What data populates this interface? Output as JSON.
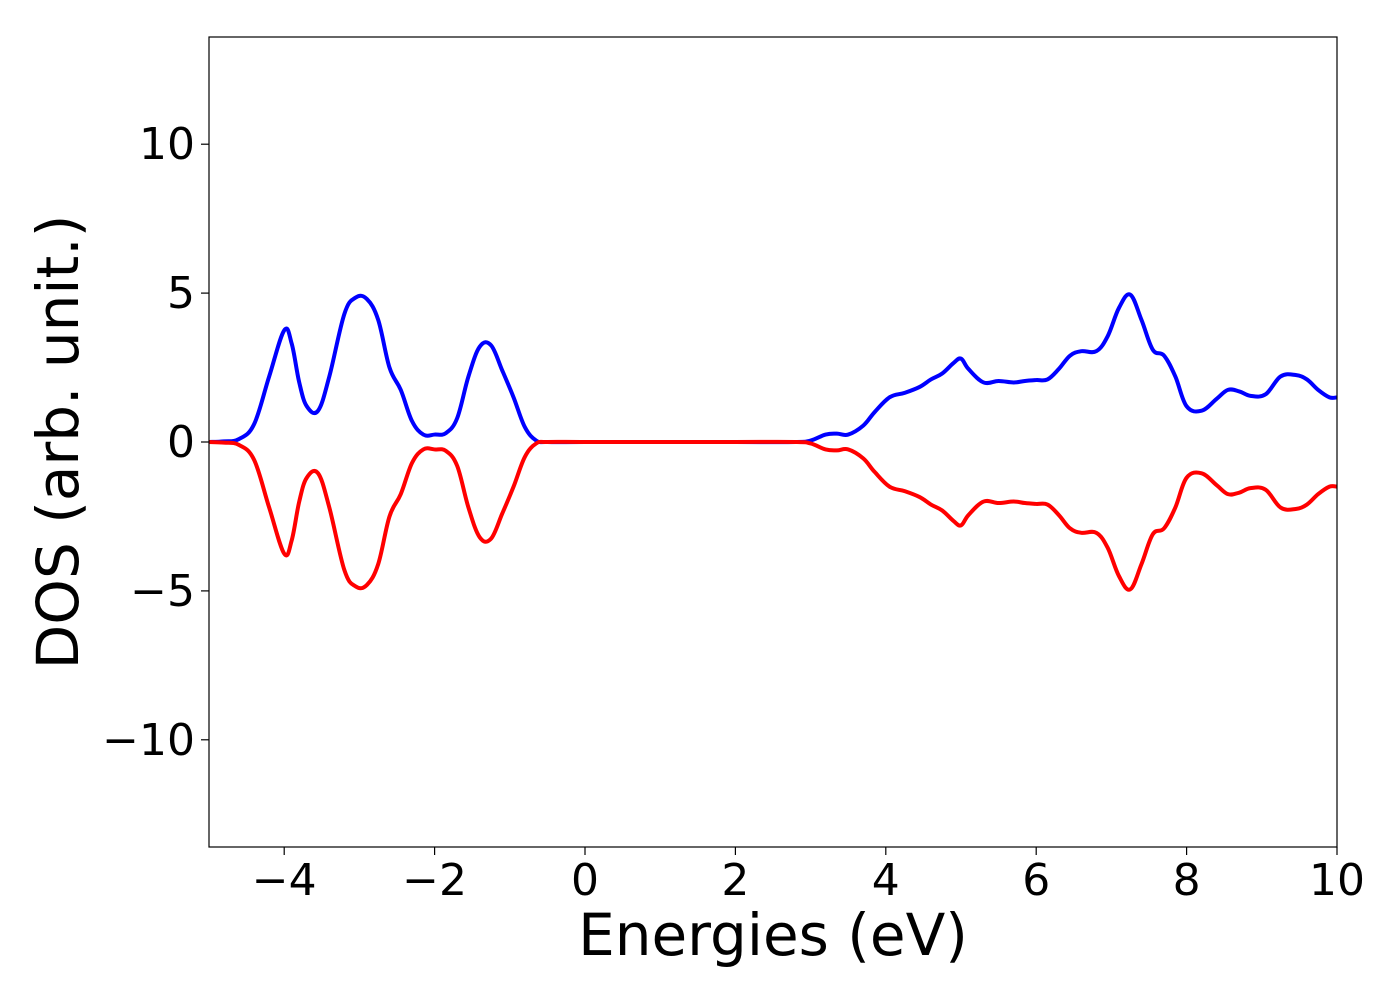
{
  "chart_data": {
    "type": "line",
    "title": "",
    "xlabel": "Energies (eV)",
    "ylabel": "DOS (arb. unit.)",
    "xlim": [
      -5,
      10
    ],
    "ylim": [
      -13.6,
      13.6
    ],
    "xticks": [
      -4,
      -2,
      0,
      2,
      4,
      6,
      8,
      10
    ],
    "xtick_labels": [
      "−4",
      "−2",
      "0",
      "2",
      "4",
      "6",
      "8",
      "10"
    ],
    "yticks": [
      -10,
      -5,
      0,
      5,
      10
    ],
    "ytick_labels": [
      "−10",
      "−5",
      "0",
      "5",
      "10"
    ],
    "grid": false,
    "legend": false,
    "series": [
      {
        "color": "#0000ff",
        "x": [
          -5.0,
          -4.8,
          -4.6,
          -4.4,
          -4.2,
          -4.0,
          -3.9,
          -3.8,
          -3.7,
          -3.55,
          -3.4,
          -3.2,
          -3.05,
          -2.9,
          -2.75,
          -2.6,
          -2.45,
          -2.3,
          -2.15,
          -2.0,
          -1.85,
          -1.7,
          -1.55,
          -1.4,
          -1.25,
          -1.1,
          -0.95,
          -0.8,
          -0.65,
          -0.5,
          0.0,
          1.0,
          2.0,
          2.8,
          3.0,
          3.2,
          3.35,
          3.5,
          3.7,
          3.85,
          4.05,
          4.25,
          4.45,
          4.6,
          4.75,
          4.9,
          5.0,
          5.1,
          5.3,
          5.5,
          5.7,
          5.85,
          6.0,
          6.15,
          6.3,
          6.45,
          6.6,
          6.8,
          6.95,
          7.1,
          7.25,
          7.4,
          7.55,
          7.7,
          7.85,
          8.0,
          8.2,
          8.4,
          8.55,
          8.7,
          8.85,
          9.05,
          9.25,
          9.45,
          9.6,
          9.75,
          9.9,
          10.0
        ],
        "y": [
          0.0,
          0.02,
          0.1,
          0.6,
          2.2,
          3.75,
          3.3,
          2.0,
          1.2,
          1.05,
          2.2,
          4.3,
          4.85,
          4.8,
          4.1,
          2.5,
          1.75,
          0.7,
          0.25,
          0.25,
          0.3,
          0.8,
          2.2,
          3.2,
          3.25,
          2.4,
          1.5,
          0.5,
          0.05,
          0.0,
          0.0,
          0.0,
          0.0,
          0.0,
          0.05,
          0.25,
          0.28,
          0.25,
          0.55,
          1.0,
          1.5,
          1.65,
          1.85,
          2.1,
          2.3,
          2.65,
          2.8,
          2.45,
          2.0,
          2.05,
          2.0,
          2.05,
          2.08,
          2.1,
          2.45,
          2.9,
          3.05,
          3.05,
          3.55,
          4.5,
          4.95,
          4.1,
          3.1,
          2.9,
          2.2,
          1.2,
          1.05,
          1.45,
          1.75,
          1.7,
          1.55,
          1.6,
          2.2,
          2.25,
          2.1,
          1.75,
          1.5,
          1.5
        ]
      },
      {
        "color": "#ff0000",
        "x": [
          -5.0,
          -4.8,
          -4.6,
          -4.4,
          -4.2,
          -4.0,
          -3.9,
          -3.8,
          -3.7,
          -3.55,
          -3.4,
          -3.2,
          -3.05,
          -2.9,
          -2.75,
          -2.6,
          -2.45,
          -2.3,
          -2.15,
          -2.0,
          -1.85,
          -1.7,
          -1.55,
          -1.4,
          -1.25,
          -1.1,
          -0.95,
          -0.8,
          -0.65,
          -0.5,
          0.0,
          1.0,
          2.0,
          2.8,
          3.0,
          3.2,
          3.35,
          3.5,
          3.7,
          3.85,
          4.05,
          4.25,
          4.45,
          4.6,
          4.75,
          4.9,
          5.0,
          5.1,
          5.3,
          5.5,
          5.7,
          5.85,
          6.0,
          6.15,
          6.3,
          6.45,
          6.6,
          6.8,
          6.95,
          7.1,
          7.25,
          7.4,
          7.55,
          7.7,
          7.85,
          8.0,
          8.2,
          8.4,
          8.55,
          8.7,
          8.85,
          9.05,
          9.25,
          9.45,
          9.6,
          9.75,
          9.9,
          10.0
        ],
        "y": [
          0.0,
          -0.02,
          -0.1,
          -0.6,
          -2.2,
          -3.75,
          -3.3,
          -2.0,
          -1.2,
          -1.05,
          -2.2,
          -4.3,
          -4.85,
          -4.8,
          -4.1,
          -2.5,
          -1.75,
          -0.7,
          -0.25,
          -0.25,
          -0.3,
          -0.8,
          -2.2,
          -3.2,
          -3.25,
          -2.4,
          -1.5,
          -0.5,
          -0.05,
          0.0,
          0.0,
          0.0,
          0.0,
          0.0,
          -0.05,
          -0.25,
          -0.28,
          -0.25,
          -0.55,
          -1.0,
          -1.5,
          -1.65,
          -1.85,
          -2.1,
          -2.3,
          -2.65,
          -2.8,
          -2.45,
          -2.0,
          -2.05,
          -2.0,
          -2.05,
          -2.08,
          -2.1,
          -2.45,
          -2.9,
          -3.05,
          -3.05,
          -3.55,
          -4.5,
          -4.95,
          -4.1,
          -3.1,
          -2.9,
          -2.2,
          -1.2,
          -1.05,
          -1.45,
          -1.75,
          -1.7,
          -1.55,
          -1.6,
          -2.2,
          -2.25,
          -2.1,
          -1.75,
          -1.5,
          -1.5
        ]
      }
    ]
  }
}
